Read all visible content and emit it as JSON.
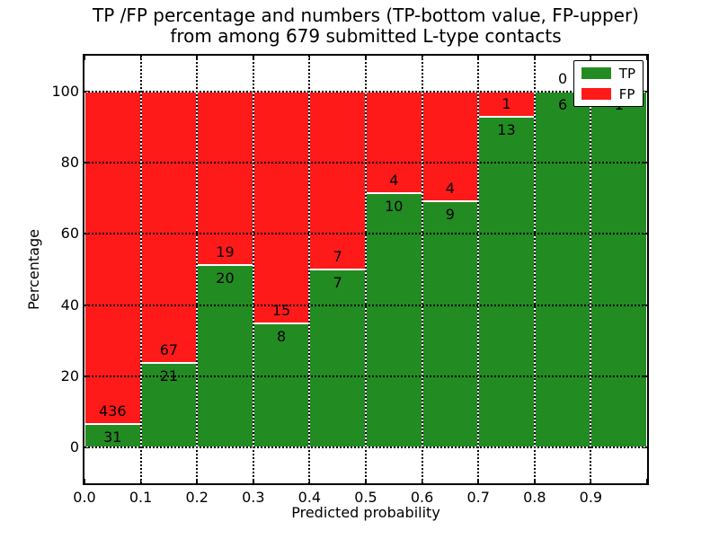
{
  "chart_data": {
    "type": "bar",
    "stacked": true,
    "normalized_to_percent": true,
    "title_line1": "TP /FP percentage and numbers (TP-bottom value, FP-upper)",
    "title_line2": "from among 679 submitted L-type contacts",
    "xlabel": "Predicted probability",
    "ylabel": "Percentage",
    "x_tick_labels": [
      "0.0",
      "0.1",
      "0.2",
      "0.3",
      "0.4",
      "0.5",
      "0.6",
      "0.7",
      "0.8",
      "0.9"
    ],
    "y_ticks": [
      0,
      20,
      40,
      60,
      80,
      100
    ],
    "xlim": [
      0.0,
      1.0
    ],
    "ylim": [
      -10,
      110
    ],
    "grid": "dotted",
    "bar_edge_color": "#ffffff",
    "bin_width": 0.1,
    "bins_start": [
      0.0,
      0.1,
      0.2,
      0.3,
      0.4,
      0.5,
      0.6,
      0.7,
      0.8,
      0.9
    ],
    "series": [
      {
        "name": "TP",
        "color": "#228B22",
        "counts": [
          31,
          21,
          20,
          8,
          7,
          10,
          9,
          13,
          6,
          1
        ]
      },
      {
        "name": "FP",
        "color": "#FF1A1A",
        "counts": [
          436,
          67,
          19,
          15,
          7,
          4,
          4,
          1,
          0,
          0
        ]
      }
    ],
    "tp_percent_per_bin": [
      6.6,
      23.9,
      51.3,
      34.8,
      50.0,
      71.4,
      69.2,
      92.9,
      100.0,
      100.0
    ],
    "value_label_rule": "TP count below boundary, FP count above boundary",
    "legend": {
      "position": "upper right",
      "items": [
        "TP",
        "FP"
      ]
    },
    "total_submitted": 679
  }
}
